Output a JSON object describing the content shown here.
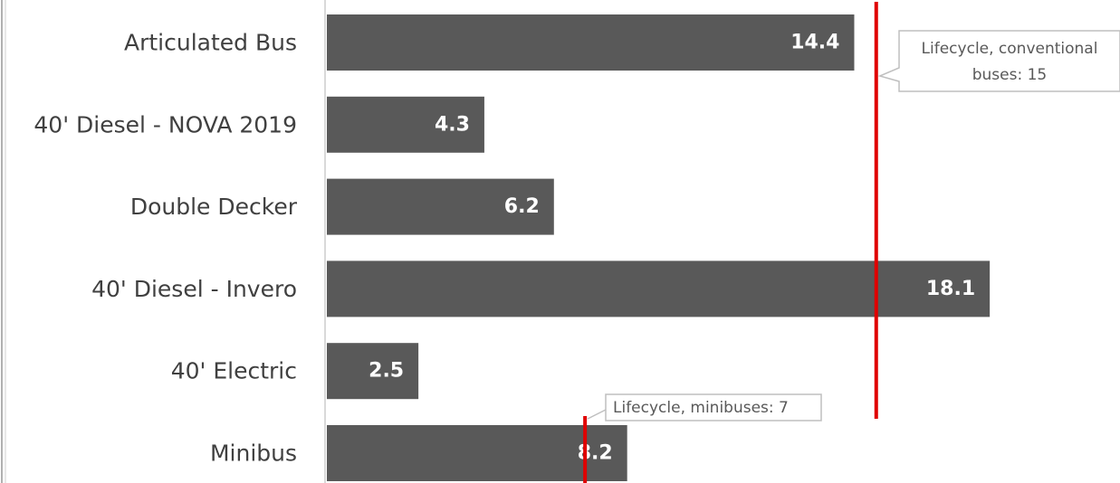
{
  "chart_data": {
    "type": "bar",
    "orientation": "horizontal",
    "categories": [
      "Articulated Bus",
      "40' Diesel - NOVA 2019",
      "Double Decker",
      "40' Diesel - Invero",
      "40' Electric",
      "Minibus"
    ],
    "values": [
      14.4,
      4.3,
      6.2,
      18.1,
      2.5,
      8.2
    ],
    "xlim": [
      0,
      21.7
    ],
    "grid": false,
    "legend": "none",
    "colors": {
      "bar": "#595959",
      "reference_line": "#e00000",
      "value_label": "#ffffff",
      "category_label": "#404040"
    },
    "reference_lines": [
      {
        "value": 15,
        "label_lines": [
          "Lifecycle, conventional",
          "buses: 15"
        ]
      },
      {
        "value": 7,
        "label_lines": [
          "Lifecycle, minibuses: 7"
        ]
      }
    ]
  }
}
